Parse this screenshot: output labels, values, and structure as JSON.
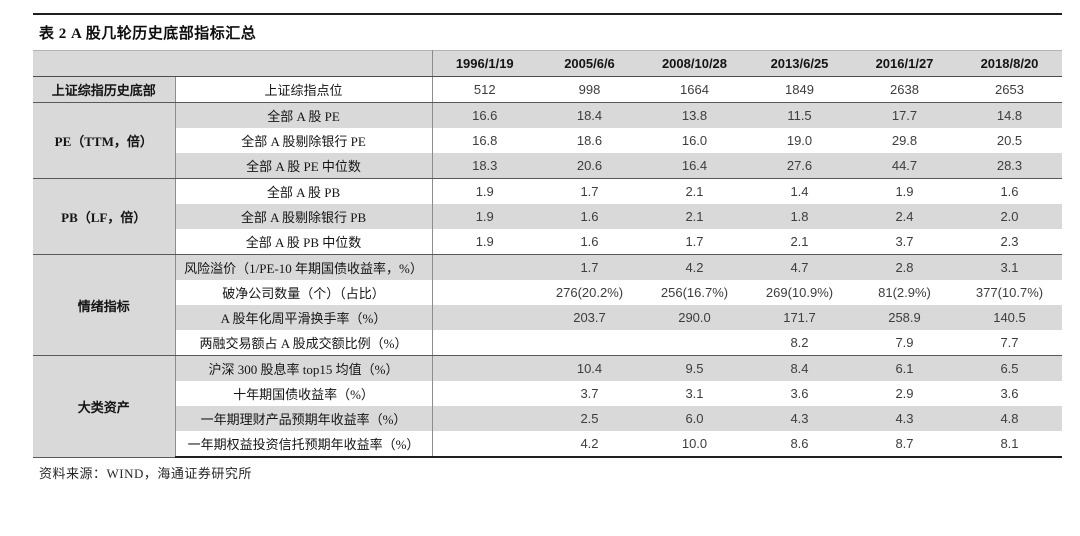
{
  "title": "表 2  A 股几轮轮历史底部指标汇总",
  "table": {
    "title": "表 2  A 股几轮历史底部指标汇总",
    "columns": [
      "1996/1/19",
      "2005/6/6",
      "2008/10/28",
      "2013/6/25",
      "2016/1/27",
      "2018/8/20"
    ],
    "groups": [
      {
        "label": "上证综指历史底部",
        "rows": [
          {
            "label": "上证综指点位",
            "values": [
              "512",
              "998",
              "1664",
              "1849",
              "2638",
              "2653"
            ]
          }
        ]
      },
      {
        "label": "PE（TTM，倍）",
        "rows": [
          {
            "label": "全部 A 股 PE",
            "values": [
              "16.6",
              "18.4",
              "13.8",
              "11.5",
              "17.7",
              "14.8"
            ]
          },
          {
            "label": "全部 A 股剔除银行 PE",
            "values": [
              "16.8",
              "18.6",
              "16.0",
              "19.0",
              "29.8",
              "20.5"
            ]
          },
          {
            "label": "全部 A 股 PE 中位数",
            "values": [
              "18.3",
              "20.6",
              "16.4",
              "27.6",
              "44.7",
              "28.3"
            ]
          }
        ]
      },
      {
        "label": "PB（LF，倍）",
        "rows": [
          {
            "label": "全部 A 股 PB",
            "values": [
              "1.9",
              "1.7",
              "2.1",
              "1.4",
              "1.9",
              "1.6"
            ]
          },
          {
            "label": "全部 A 股剔除银行 PB",
            "values": [
              "1.9",
              "1.6",
              "2.1",
              "1.8",
              "2.4",
              "2.0"
            ]
          },
          {
            "label": "全部 A 股 PB 中位数",
            "values": [
              "1.9",
              "1.6",
              "1.7",
              "2.1",
              "3.7",
              "2.3"
            ]
          }
        ]
      },
      {
        "label": "情绪指标",
        "rows": [
          {
            "label": "风险溢价（1/PE-10 年期国债收益率，%）",
            "values": [
              "",
              "1.7",
              "4.2",
              "4.7",
              "2.8",
              "3.1"
            ]
          },
          {
            "label": "破净公司数量（个）（占比）",
            "values": [
              "",
              "276(20.2%)",
              "256(16.7%)",
              "269(10.9%)",
              "81(2.9%)",
              "377(10.7%)"
            ]
          },
          {
            "label": "A 股年化周平滑换手率（%）",
            "values": [
              "",
              "203.7",
              "290.0",
              "171.7",
              "258.9",
              "140.5"
            ]
          },
          {
            "label": "两融交易额占 A 股成交额比例（%）",
            "values": [
              "",
              "",
              "",
              "8.2",
              "7.9",
              "7.7"
            ]
          }
        ]
      },
      {
        "label": "大类资产",
        "rows": [
          {
            "label": "沪深 300 股息率 top15 均值（%）",
            "values": [
              "",
              "10.4",
              "9.5",
              "8.4",
              "6.1",
              "6.5"
            ]
          },
          {
            "label": "十年期国债收益率（%）",
            "values": [
              "",
              "3.7",
              "3.1",
              "3.6",
              "2.9",
              "3.6"
            ]
          },
          {
            "label": "一年期理财产品预期年收益率（%）",
            "values": [
              "",
              "2.5",
              "6.0",
              "4.3",
              "4.3",
              "4.8"
            ]
          },
          {
            "label": "一年期权益投资信托预期年收益率（%）",
            "values": [
              "",
              "4.2",
              "10.0",
              "8.6",
              "8.7",
              "8.1"
            ]
          }
        ]
      }
    ]
  },
  "source": "资料来源：WIND，海通证券研究所"
}
